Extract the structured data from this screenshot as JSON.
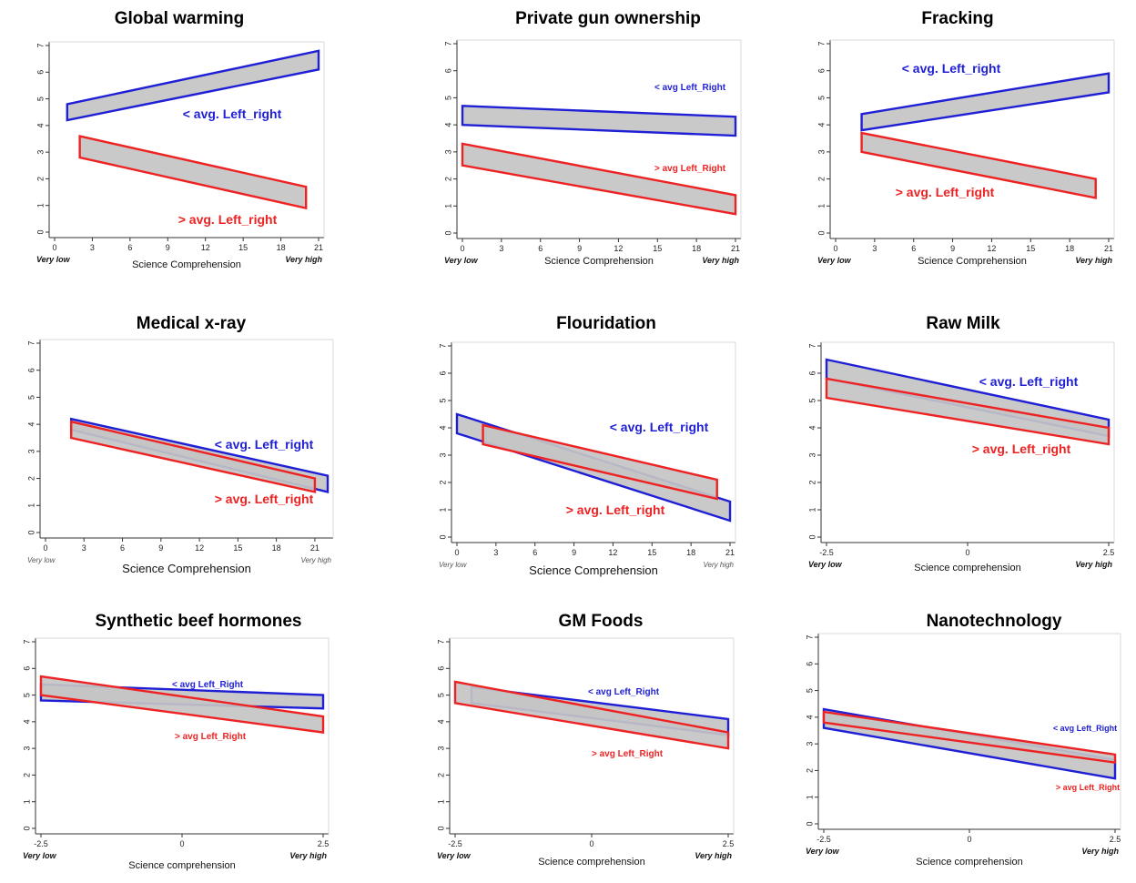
{
  "figure": {
    "colors": {
      "below_avg": "#1f1fd6",
      "above_avg": "#ee2222",
      "band_fill": "#c4c4c4"
    }
  },
  "chart_data": [
    {
      "type": "area",
      "title": "Global warming",
      "xlabel": "Science Comprehension",
      "x_end_labels": [
        "Very low",
        "Very high"
      ],
      "xticks": [
        "0",
        "3",
        "6",
        "9",
        "12",
        "15",
        "18",
        "21"
      ],
      "xlim": [
        0,
        21
      ],
      "ylim": [
        0,
        7
      ],
      "yticks": [
        "0",
        "1",
        "2",
        "3",
        "4",
        "5",
        "6",
        "7"
      ],
      "series": [
        {
          "name": "< avg. Left_right",
          "color": "blue",
          "x": [
            1,
            21
          ],
          "upper": [
            4.8,
            6.8
          ],
          "lower": [
            4.2,
            6.1
          ]
        },
        {
          "name": "> avg. Left_right",
          "color": "red",
          "x": [
            2,
            20
          ],
          "upper": [
            3.6,
            1.7
          ],
          "lower": [
            2.8,
            0.9
          ]
        }
      ]
    },
    {
      "type": "area",
      "title": "Private gun ownership",
      "xlabel": "Science Comprehension",
      "x_end_labels": [
        "Very low",
        "Very high"
      ],
      "xticks": [
        "0",
        "3",
        "6",
        "9",
        "12",
        "15",
        "18",
        "21"
      ],
      "xlim": [
        0,
        21
      ],
      "ylim": [
        0,
        7
      ],
      "yticks": [
        "0",
        "1",
        "2",
        "3",
        "4",
        "5",
        "6",
        "7"
      ],
      "series": [
        {
          "name": "< avg Left_Right",
          "color": "blue",
          "x": [
            0,
            21
          ],
          "upper": [
            4.7,
            4.3
          ],
          "lower": [
            4.0,
            3.6
          ]
        },
        {
          "name": "> avg Left_Right",
          "color": "red",
          "x": [
            0,
            21
          ],
          "upper": [
            3.3,
            1.4
          ],
          "lower": [
            2.5,
            0.7
          ]
        }
      ]
    },
    {
      "type": "area",
      "title": "Fracking",
      "xlabel": "Science Comprehension",
      "x_end_labels": [
        "Very low",
        "Very high"
      ],
      "xticks": [
        "0",
        "3",
        "6",
        "9",
        "12",
        "15",
        "18",
        "21"
      ],
      "xlim": [
        0,
        21
      ],
      "ylim": [
        0,
        7
      ],
      "yticks": [
        "0",
        "1",
        "2",
        "3",
        "4",
        "5",
        "6",
        "7"
      ],
      "series": [
        {
          "name": "< avg. Left_right",
          "color": "blue",
          "x": [
            2,
            21
          ],
          "upper": [
            4.4,
            5.9
          ],
          "lower": [
            3.8,
            5.2
          ]
        },
        {
          "name": "> avg. Left_right",
          "color": "red",
          "x": [
            2,
            20
          ],
          "upper": [
            3.7,
            2.0
          ],
          "lower": [
            3.0,
            1.3
          ]
        }
      ]
    },
    {
      "type": "area",
      "title": "Medical x-ray",
      "xlabel": "Science Comprehension",
      "x_end_labels": [
        "Very low",
        "Very high"
      ],
      "xticks": [
        "0",
        "3",
        "6",
        "9",
        "12",
        "15",
        "18",
        "21"
      ],
      "xlim": [
        0,
        22
      ],
      "ylim": [
        0,
        7
      ],
      "yticks": [
        "0",
        "1",
        "2",
        "3",
        "4",
        "5",
        "6",
        "7"
      ],
      "series": [
        {
          "name": "< avg. Left_right",
          "color": "blue",
          "x": [
            2,
            22
          ],
          "upper": [
            4.2,
            2.1
          ],
          "lower": [
            3.8,
            1.5
          ]
        },
        {
          "name": "> avg. Left_right",
          "color": "red",
          "x": [
            2,
            21
          ],
          "upper": [
            4.1,
            2.0
          ],
          "lower": [
            3.5,
            1.5
          ]
        }
      ]
    },
    {
      "type": "area",
      "title": "Flouridation",
      "xlabel": "Science Comprehension",
      "x_end_labels": [
        "Very low",
        "Very high"
      ],
      "xticks": [
        "0",
        "3",
        "6",
        "9",
        "12",
        "15",
        "18",
        "21"
      ],
      "xlim": [
        0,
        21
      ],
      "ylim": [
        0,
        7
      ],
      "yticks": [
        "0",
        "1",
        "2",
        "3",
        "4",
        "5",
        "6",
        "7"
      ],
      "series": [
        {
          "name": "< avg. Left_right",
          "color": "blue",
          "x": [
            0,
            21
          ],
          "upper": [
            4.5,
            1.3
          ],
          "lower": [
            3.8,
            0.6
          ]
        },
        {
          "name": "> avg. Left_right",
          "color": "red",
          "x": [
            2,
            20
          ],
          "upper": [
            4.1,
            2.1
          ],
          "lower": [
            3.4,
            1.4
          ]
        }
      ]
    },
    {
      "type": "area",
      "title": "Raw Milk",
      "xlabel": "Science comprehension",
      "x_end_labels": [
        "Very low",
        "Very high"
      ],
      "xticks": [
        "-2.5",
        "0",
        "2.5"
      ],
      "xlim": [
        -2.5,
        2.5
      ],
      "ylim": [
        0,
        7
      ],
      "yticks": [
        "0",
        "1",
        "2",
        "3",
        "4",
        "5",
        "6",
        "7"
      ],
      "series": [
        {
          "name": "< avg. Left_right",
          "color": "blue",
          "x": [
            -2.5,
            2.5
          ],
          "upper": [
            6.5,
            4.3
          ],
          "lower": [
            5.8,
            3.7
          ]
        },
        {
          "name": "> avg. Left_right",
          "color": "red",
          "x": [
            -2.5,
            2.5
          ],
          "upper": [
            5.8,
            4.0
          ],
          "lower": [
            5.1,
            3.4
          ]
        }
      ]
    },
    {
      "type": "area",
      "title": "Synthetic beef hormones",
      "xlabel": "Science comprehension",
      "x_end_labels": [
        "Very low",
        "Very high"
      ],
      "xticks": [
        "-2.5",
        "0",
        "2.5"
      ],
      "xlim": [
        -2.5,
        2.5
      ],
      "ylim": [
        0,
        7
      ],
      "yticks": [
        "0",
        "1",
        "2",
        "3",
        "4",
        "5",
        "6",
        "7"
      ],
      "series": [
        {
          "name": "< avg Left_Right",
          "color": "blue",
          "x": [
            -2.5,
            2.5
          ],
          "upper": [
            5.4,
            5.0
          ],
          "lower": [
            4.8,
            4.5
          ]
        },
        {
          "name": "> avg Left_Right",
          "color": "red",
          "x": [
            -2.5,
            2.5
          ],
          "upper": [
            5.7,
            4.2
          ],
          "lower": [
            5.0,
            3.6
          ]
        }
      ]
    },
    {
      "type": "area",
      "title": "GM Foods",
      "xlabel": "Science comprehension",
      "x_end_labels": [
        "Very low",
        "Very high"
      ],
      "xticks": [
        "-2.5",
        "0",
        "2.5"
      ],
      "xlim": [
        -2.5,
        2.5
      ],
      "ylim": [
        0,
        7
      ],
      "yticks": [
        "0",
        "1",
        "2",
        "3",
        "4",
        "5",
        "6",
        "7"
      ],
      "series": [
        {
          "name": "< avg Left_Right",
          "color": "blue",
          "x": [
            -2.2,
            2.5
          ],
          "upper": [
            5.3,
            4.1
          ],
          "lower": [
            4.7,
            3.5
          ]
        },
        {
          "name": "> avg Left_Right",
          "color": "red",
          "x": [
            -2.5,
            2.5
          ],
          "upper": [
            5.5,
            3.6
          ],
          "lower": [
            4.7,
            3.0
          ]
        }
      ]
    },
    {
      "type": "area",
      "title": "Nanotechnology",
      "xlabel": "Science comprehension",
      "x_end_labels": [
        "Very low",
        "Very high"
      ],
      "xticks": [
        "-2.5",
        "0",
        "2.5"
      ],
      "xlim": [
        -2.5,
        2.5
      ],
      "ylim": [
        0,
        7
      ],
      "yticks": [
        "0",
        "1",
        "2",
        "3",
        "4",
        "5",
        "6",
        "7"
      ],
      "series": [
        {
          "name": "< avg Left_Right",
          "color": "blue",
          "x": [
            -2.5,
            2.5
          ],
          "upper": [
            4.3,
            2.4
          ],
          "lower": [
            3.6,
            1.7
          ]
        },
        {
          "name": "> avg Left_Right",
          "color": "red",
          "x": [
            -2.5,
            2.5
          ],
          "upper": [
            4.2,
            2.6
          ],
          "lower": [
            3.8,
            2.3
          ]
        }
      ]
    }
  ]
}
